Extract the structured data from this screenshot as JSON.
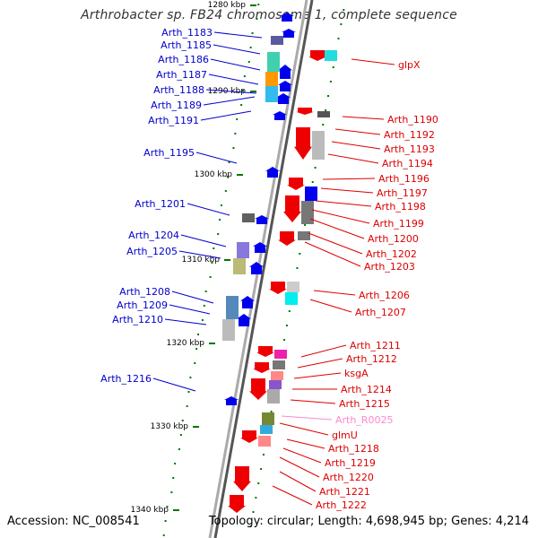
{
  "title": "Arthrobacter sp. FB24 chromosome 1, complete sequence",
  "footer": {
    "accession": "Accession: NC_008541",
    "summary": "Topology: circular; Length: 4,698,945 bp; Genes: 4,214"
  },
  "scale_labels": [
    "1280 kbp",
    "1290 kbp",
    "1300 kbp",
    "1310 kbp",
    "1320 kbp",
    "1330 kbp",
    "1340 kbp"
  ],
  "colors": {
    "forward_label": "#0000cc",
    "reverse_label": "#dd0000",
    "rna_label": "#ff88cc",
    "backbone": "#888888",
    "tick": "#007700"
  },
  "left_labels": [
    "Arth_1183",
    "Arth_1185",
    "Arth_1186",
    "Arth_1187",
    "Arth_1188",
    "Arth_1189",
    "Arth_1191",
    "Arth_1195",
    "Arth_1201",
    "Arth_1204",
    "Arth_1205",
    "Arth_1208",
    "Arth_1209",
    "Arth_1210",
    "Arth_1216"
  ],
  "right_labels": [
    "glpX",
    "Arth_1190",
    "Arth_1192",
    "Arth_1193",
    "Arth_1194",
    "Arth_1196",
    "Arth_1197",
    "Arth_1198",
    "Arth_1199",
    "Arth_1200",
    "Arth_1202",
    "Arth_1203",
    "Arth_1206",
    "Arth_1207",
    "Arth_1211",
    "Arth_1212",
    "ksgA",
    "Arth_1214",
    "Arth_1215",
    "Arth_R0025",
    "glmU",
    "Arth_1218",
    "Arth_1219",
    "Arth_1220",
    "Arth_1221",
    "Arth_1222"
  ]
}
